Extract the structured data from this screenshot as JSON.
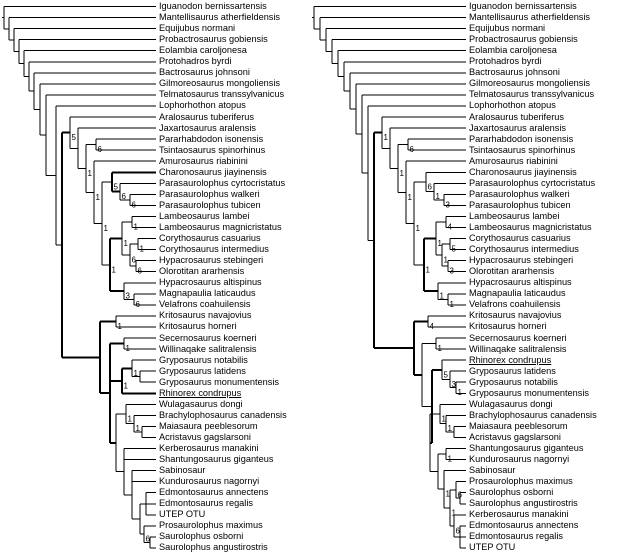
{
  "left_tree": {
    "taxa": [
      "Iguanodon bernissartensis",
      "Mantellisaurus atherfieldensis",
      "Equijubus normani",
      "Probactrosaurus gobiensis",
      "Eolambia caroljonesa",
      "Protohadros byrdi",
      "Bactrosaurus johnsoni",
      "Gilmoreosaurus mongoliensis",
      "Telmatosaurus transsylvanicus",
      "Lophorhothon atopus",
      "Aralosaurus tuberiferus",
      "Jaxartosaurus aralensis",
      "Pararhabdodon isonensis",
      "Tsintaosaurus spinorhinus",
      "Amurosaurus riabinini",
      "Charonosaurus jiayinensis",
      "Parasaurolophus cyrtocristatus",
      "Parasaurolophus walkeri",
      "Parasaurolophus tubicen",
      "Lambeosaurus lambei",
      "Lambeosaurus magnicristatus",
      "Corythosaurus casuarius",
      "Corythosaurus intermedius",
      "Hypacrosaurus stebingeri",
      "Olorotitan ararhensis",
      "Hypacrosaurus altispinus",
      "Magnapaulia laticaudus",
      "Velafrons coahuilensis",
      "Kritosaurus navajovius",
      "Kritosaurus horneri",
      "Secernosaurus koerneri",
      "Willinaqake salitralensis",
      "Gryposaurus notabilis",
      "Gryposaurus latidens",
      "Gryposaurus monumentensis",
      "Rhinorex condrupus",
      "Wulagasaurus dongi",
      "Brachylophosaurus canadensis",
      "Maiasaura peeblesorum",
      "Acristavus gagslarsoni",
      "Kerberosaurus manakini",
      "Shantungosaurus giganteus",
      "Sabinosaur",
      "Kundurosaurus nagornyi",
      "Edmontosaurus annectens",
      "Edmontosaurus regalis",
      "UTEP OTU",
      "Prosaurolophus maximus",
      "Saurolophus osborni",
      "Saurolophus angustirostris"
    ],
    "underlined": [
      "Rhinorex condrupus"
    ],
    "node_labels": [
      "6",
      "6",
      "6",
      "5",
      "1",
      "1",
      "6",
      "6",
      "1",
      "6",
      "3",
      "1",
      "1",
      "1",
      "1",
      "5",
      "1",
      "1",
      "1",
      "1",
      "1",
      "1",
      "6"
    ]
  },
  "right_tree": {
    "taxa": [
      "Iguanodon bernissartensis",
      "Mantellisaurus atherfieldensis",
      "Equijubus normani",
      "Probactrosaurus gobiensis",
      "Eolambia caroljonesa",
      "Protohadros byrdi",
      "Bactrosaurus johnsoni",
      "Gilmoreosaurus mongoliensis",
      "Telmatosaurus transsylvanicus",
      "Lophorhothon atopus",
      "Aralosaurus tuberiferus",
      "Jaxartosaurus aralensis",
      "Pararhabdodon isonensis",
      "Tsintaosaurus spinorhinus",
      "Amurosaurus riabinini",
      "Charonosaurus jiayinensis",
      "Parasaurolophus cyrtocristatus",
      "Parasaurolophus walkeri",
      "Parasaurolophus tubicen",
      "Lambeosaurus lambei",
      "Lambeosaurus magnicristatus",
      "Corythosaurus casuarius",
      "Corythosaurus intermedius",
      "Hypacrosaurus stebingeri",
      "Olorotitan ararhensis",
      "Hypacrosaurus altispinus",
      "Magnapaulia laticaudus",
      "Velafrons coahuilensis",
      "Kritosaurus navajovius",
      "Kritosaurus horneri",
      "Secernosaurus koerneri",
      "Willinaqake salitralensis",
      "Rhinorex condrupus",
      "Gryposaurus latidens",
      "Gryposaurus notabilis",
      "Gryposaurus monumentensis",
      "Wulagasaurus dongi",
      "Brachylophosaurus canadensis",
      "Maiasaura peeblesorum",
      "Acristavus gagslarsoni",
      "Shantungosaurus giganteus",
      "Kundurosaurus nagornyi",
      "Sabinosaur",
      "Prosaurolophus maximus",
      "Saurolophus osborni",
      "Saurolophus angustirostris",
      "Kerberosaurus manakini",
      "Edmontosaurus annectens",
      "Edmontosaurus regalis",
      "UTEP OTU"
    ],
    "underlined": [
      "Rhinorex condrupus"
    ],
    "node_labels": [
      "6",
      "3",
      "1",
      "6",
      "4",
      "5",
      "3",
      "1",
      "1",
      "1",
      "1",
      "1",
      "1",
      "1",
      "1",
      "1",
      "4",
      "1",
      "1",
      "3",
      "5",
      "1",
      "1",
      "1",
      "6",
      "6",
      "1",
      "1"
    ]
  }
}
